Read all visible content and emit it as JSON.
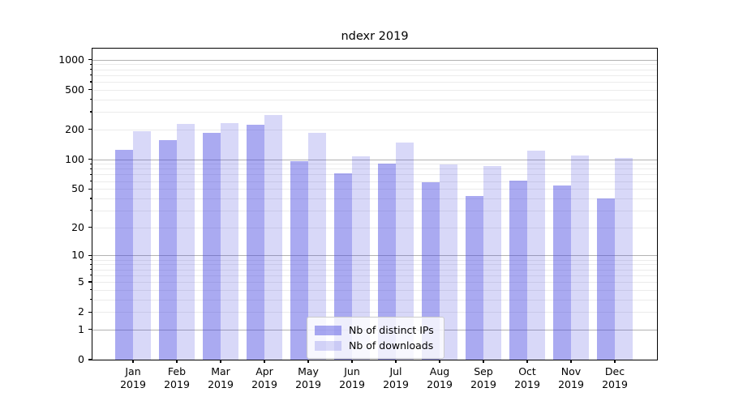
{
  "chart_data": {
    "type": "bar",
    "title": "ndexr 2019",
    "categories": [
      "Jan",
      "Feb",
      "Mar",
      "Apr",
      "May",
      "Jun",
      "Jul",
      "Aug",
      "Sep",
      "Oct",
      "Nov",
      "Dec"
    ],
    "x_year": "2019",
    "series": [
      {
        "name": "Nb of distinct IPs",
        "color": "rgba(70,70,225,0.46)",
        "values": [
          125,
          155,
          186,
          222,
          96,
          72,
          90,
          58,
          42,
          61,
          54,
          40
        ]
      },
      {
        "name": "Nb of downloads",
        "color": "rgba(60,60,220,0.20)",
        "values": [
          190,
          226,
          230,
          278,
          185,
          108,
          146,
          88,
          85,
          121,
          110,
          103
        ]
      }
    ],
    "yscale": "symlog",
    "ylim": [
      0,
      1290
    ],
    "y_ticks": [
      0,
      1,
      2,
      5,
      10,
      20,
      50,
      100,
      200,
      500,
      1000
    ],
    "y_major_gridlines": [
      1,
      10,
      100,
      1000
    ],
    "grid": "on",
    "legend_position": "lower-center",
    "colors": {
      "axis": "#000000",
      "major_grid": "#b2b2b2",
      "minor_grid": "#ebebeb"
    }
  }
}
